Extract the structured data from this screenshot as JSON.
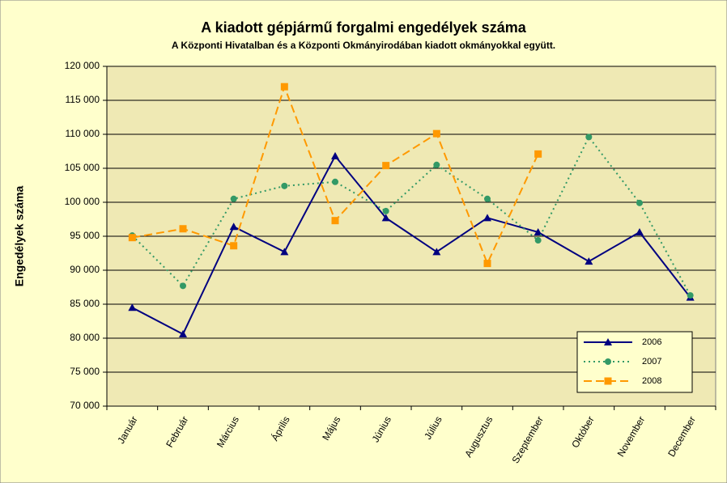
{
  "chart_data": {
    "type": "line",
    "title": "A  kiadott gépjármű forgalmi engedélyek száma",
    "subtitle": "A  Központi Hivatalban és a Központi Okmányirodában kiadott okmányokkal együtt.",
    "y_label": "Engedélyek száma",
    "categories": [
      "Január",
      "Február",
      "Március",
      "Április",
      "Május",
      "Június",
      "Július",
      "Augusztus",
      "Szeptember",
      "Október",
      "November",
      "December"
    ],
    "series": [
      {
        "name": "2006",
        "color": "#000080",
        "marker": "triangle",
        "dash": "solid",
        "values": [
          84500,
          80600,
          96400,
          92700,
          106800,
          97700,
          92700,
          97700,
          95600,
          91300,
          95600,
          86000
        ]
      },
      {
        "name": "2007",
        "color": "#339966",
        "marker": "circle",
        "dash": "dotted",
        "values": [
          95100,
          87700,
          100500,
          102400,
          103000,
          98700,
          105500,
          100500,
          94400,
          109600,
          99900,
          86300
        ]
      },
      {
        "name": "2008",
        "color": "#ff9900",
        "marker": "square",
        "dash": "dashed",
        "values": [
          94800,
          96100,
          93600,
          117000,
          97300,
          105400,
          110100,
          91000,
          107100,
          null,
          null,
          null
        ]
      }
    ],
    "ylim": [
      70000,
      120000
    ],
    "yticks": [
      {
        "value": 70000,
        "label": "70 000"
      },
      {
        "value": 75000,
        "label": "75 000"
      },
      {
        "value": 80000,
        "label": "80 000"
      },
      {
        "value": 85000,
        "label": "85 000"
      },
      {
        "value": 90000,
        "label": "90 000"
      },
      {
        "value": 95000,
        "label": "95 000"
      },
      {
        "value": 100000,
        "label": "100 000"
      },
      {
        "value": 105000,
        "label": "105 000"
      },
      {
        "value": 110000,
        "label": "110 000"
      },
      {
        "value": 115000,
        "label": "115 000"
      },
      {
        "value": 120000,
        "label": "120 000"
      }
    ],
    "grid": true,
    "legend": "lower-right"
  }
}
